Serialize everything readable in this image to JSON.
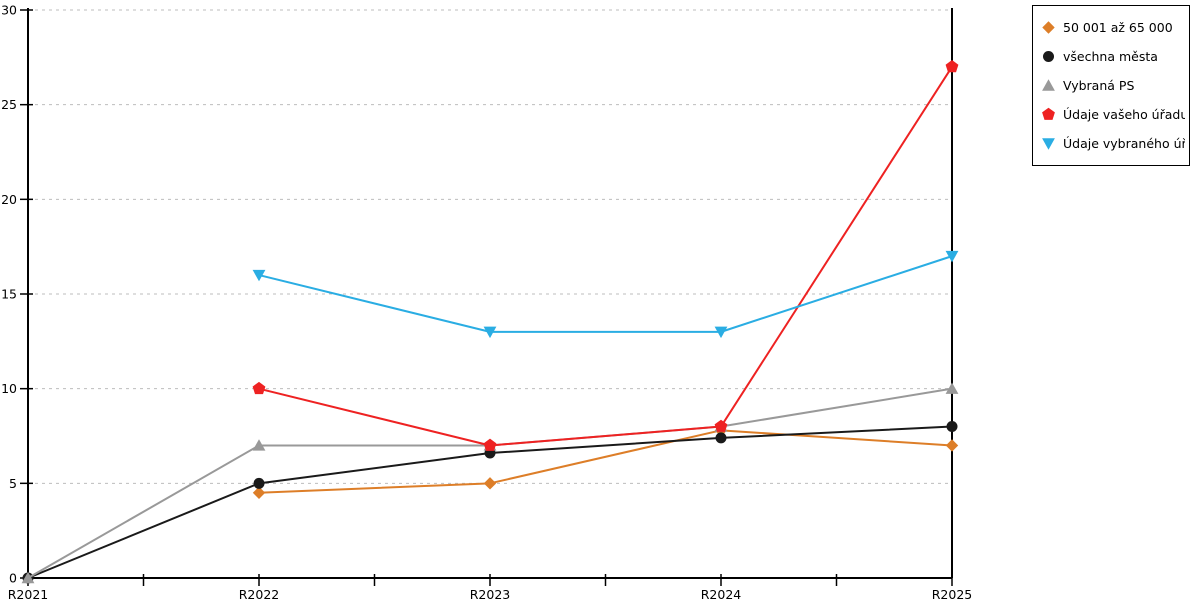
{
  "chart_data": {
    "type": "line",
    "title": "",
    "xlabel": "",
    "ylabel": "",
    "categories": [
      "R2021",
      "R2022",
      "R2023",
      "R2024",
      "R2025"
    ],
    "y_ticks": [
      "0",
      "5",
      "10",
      "15",
      "20",
      "25",
      "30"
    ],
    "ylim": [
      0,
      30
    ],
    "grid": "horizontal, dashed, at every 5 units",
    "legend_position": "outside-top-right",
    "series": [
      {
        "name": "50 001 až 65 000",
        "color": "#dd7e28",
        "marker": "diamond",
        "values": [
          null,
          4.5,
          5,
          7.8,
          7
        ]
      },
      {
        "name": "všechna města",
        "color": "#1a1a1a",
        "marker": "circle",
        "values": [
          0,
          5,
          6.6,
          7.4,
          8
        ]
      },
      {
        "name": "Vybraná PS",
        "color": "#999999",
        "marker": "triangle-up",
        "values": [
          0,
          7,
          7,
          8,
          10
        ]
      },
      {
        "name": "Údaje vašeho úřadu",
        "color": "#ee2222",
        "marker": "pentagon",
        "values": [
          null,
          10,
          7,
          8,
          27
        ]
      },
      {
        "name": "Údaje vybraného úřadu",
        "color": "#2aade3",
        "marker": "triangle-down",
        "values": [
          null,
          16,
          13,
          13,
          17
        ]
      }
    ],
    "colors": {
      "background": "#ffffff",
      "axis": "#000000",
      "gridline": "#bdbdbd"
    }
  }
}
